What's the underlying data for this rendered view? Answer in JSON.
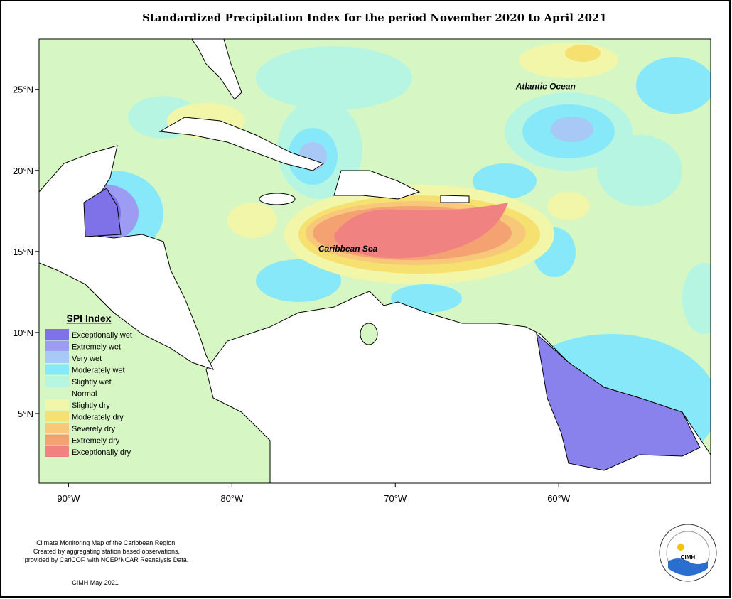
{
  "title": "Standardized Precipitation Index for the period November 2020 to April 2021",
  "map": {
    "lon_range": [
      -91.8,
      -50.7
    ],
    "lat_range": [
      0.7,
      28.1
    ],
    "lon_ticks": [
      {
        "value": -90,
        "label": "90°W"
      },
      {
        "value": -80,
        "label": "80°W"
      },
      {
        "value": -70,
        "label": "70°W"
      },
      {
        "value": -60,
        "label": "60°W"
      }
    ],
    "lat_ticks": [
      {
        "value": 25,
        "label": "25°N"
      },
      {
        "value": 20,
        "label": "20°N"
      },
      {
        "value": 15,
        "label": "15°N"
      },
      {
        "value": 10,
        "label": "10°N"
      },
      {
        "value": 5,
        "label": "5°N"
      }
    ],
    "labels": [
      {
        "text": "Atlantic Ocean",
        "lon": -60.8,
        "lat": 25
      },
      {
        "text": "Caribbean Sea",
        "lon": -72.9,
        "lat": 15
      }
    ]
  },
  "legend": {
    "title": "SPI Index",
    "items": [
      {
        "name": "Exceptionally wet",
        "color": "#7f72e8"
      },
      {
        "name": "Extremely wet",
        "color": "#9c9cf2"
      },
      {
        "name": "Very wet",
        "color": "#a8c8f6"
      },
      {
        "name": "Moderately wet",
        "color": "#86e8f8"
      },
      {
        "name": "Slightly wet",
        "color": "#b6f5e2"
      },
      {
        "name": "Normal",
        "color": "#d6f7c3"
      },
      {
        "name": "Slightly dry",
        "color": "#f2f6a8"
      },
      {
        "name": "Moderately dry",
        "color": "#f6e070"
      },
      {
        "name": "Severely dry",
        "color": "#f8c87a"
      },
      {
        "name": "Extremely dry",
        "color": "#f5a272"
      },
      {
        "name": "Exceptionally dry",
        "color": "#f08282"
      }
    ]
  },
  "footer": {
    "lines": [
      "Climate Monitoring Map of the Caribbean Region.",
      "Created by aggregating station based observations,",
      "provided by CariCOF, with NCEP/NCAR Reanalysis Data."
    ],
    "date": "CIMH May-2021"
  },
  "logo": {
    "text": "CIMH"
  }
}
